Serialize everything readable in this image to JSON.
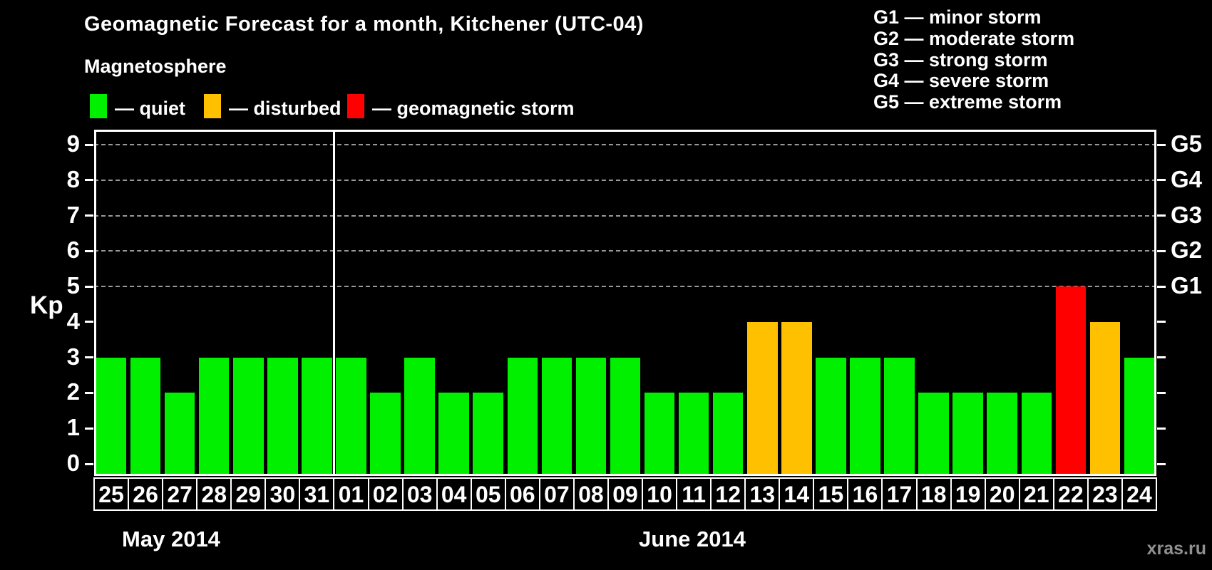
{
  "header": {
    "title": "Geomagnetic Forecast for a month, Kitchener (UTC-04)",
    "subtitle": "Magnetosphere"
  },
  "legend": {
    "items": [
      {
        "state": "quiet",
        "label": "— quiet",
        "color": "#00f000"
      },
      {
        "state": "disturbed",
        "label": "— disturbed",
        "color": "#ffc000"
      },
      {
        "state": "storm",
        "label": "— geomagnetic storm",
        "color": "#ff0000"
      }
    ]
  },
  "storm_scale": [
    {
      "code": "G1",
      "name": "minor storm"
    },
    {
      "code": "G2",
      "name": "moderate storm"
    },
    {
      "code": "G3",
      "name": "strong storm"
    },
    {
      "code": "G4",
      "name": "severe storm"
    },
    {
      "code": "G5",
      "name": "extreme storm"
    }
  ],
  "watermark": "xras.ru",
  "colors": {
    "background": "#000000",
    "axis": "#ffffff",
    "grid": "#999999",
    "quiet": "#00f000",
    "disturbed": "#ffc000",
    "storm": "#ff0000",
    "watermark": "#909090"
  },
  "chart_data": {
    "type": "bar",
    "title": "Geomagnetic Forecast for a month, Kitchener (UTC-04)",
    "ylabel": "Kp",
    "ylim": [
      0,
      9
    ],
    "grid": true,
    "y_ticks_left": [
      0,
      1,
      2,
      3,
      4,
      5,
      6,
      7,
      8,
      9
    ],
    "gridline_levels": [
      5,
      6,
      7,
      8,
      9
    ],
    "right_axis_labels": [
      {
        "kp": 5,
        "label": "G1"
      },
      {
        "kp": 6,
        "label": "G2"
      },
      {
        "kp": 7,
        "label": "G3"
      },
      {
        "kp": 8,
        "label": "G4"
      },
      {
        "kp": 9,
        "label": "G5"
      }
    ],
    "months": [
      {
        "label": "May 2014",
        "days_count": 7
      },
      {
        "label": "June 2014",
        "days_count": 24
      }
    ],
    "categories": [
      "25",
      "26",
      "27",
      "28",
      "29",
      "30",
      "31",
      "01",
      "02",
      "03",
      "04",
      "05",
      "06",
      "07",
      "08",
      "09",
      "10",
      "11",
      "12",
      "13",
      "14",
      "15",
      "16",
      "17",
      "18",
      "19",
      "20",
      "21",
      "22",
      "23",
      "24"
    ],
    "values": [
      3,
      3,
      2,
      3,
      3,
      3,
      3,
      3,
      2,
      3,
      2,
      2,
      3,
      3,
      3,
      3,
      2,
      2,
      2,
      4,
      4,
      3,
      3,
      3,
      2,
      2,
      2,
      2,
      5,
      4,
      3
    ],
    "states": [
      "quiet",
      "quiet",
      "quiet",
      "quiet",
      "quiet",
      "quiet",
      "quiet",
      "quiet",
      "quiet",
      "quiet",
      "quiet",
      "quiet",
      "quiet",
      "quiet",
      "quiet",
      "quiet",
      "quiet",
      "quiet",
      "quiet",
      "disturbed",
      "disturbed",
      "quiet",
      "quiet",
      "quiet",
      "quiet",
      "quiet",
      "quiet",
      "quiet",
      "storm",
      "disturbed",
      "quiet"
    ]
  }
}
